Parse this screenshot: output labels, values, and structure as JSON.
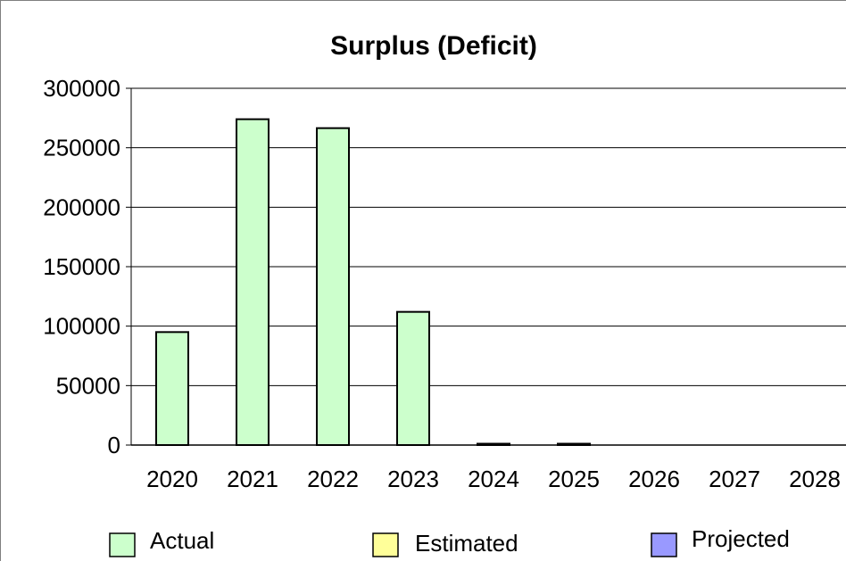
{
  "chart_data": {
    "type": "bar",
    "title": "Surplus (Deficit)",
    "categories": [
      "2020",
      "2021",
      "2022",
      "2023",
      "2024",
      "2025",
      "2026",
      "2027",
      "2028"
    ],
    "series": [
      {
        "name": "Actual",
        "values": [
          95000,
          274000,
          266500,
          112000,
          0,
          0,
          null,
          null,
          null
        ],
        "color": "#ccffcc"
      },
      {
        "name": "Estimated",
        "values": [
          null,
          null,
          null,
          null,
          null,
          null,
          null,
          null,
          null
        ],
        "color": "#ffff99"
      },
      {
        "name": "Projected",
        "values": [
          null,
          null,
          null,
          null,
          null,
          null,
          null,
          null,
          null
        ],
        "color": "#9999ff"
      }
    ],
    "ylim": [
      0,
      300000
    ],
    "yticks": [
      "0",
      "50000",
      "100000",
      "150000",
      "200000",
      "250000",
      "300000"
    ],
    "grid": true,
    "legend_position": "bottom"
  }
}
